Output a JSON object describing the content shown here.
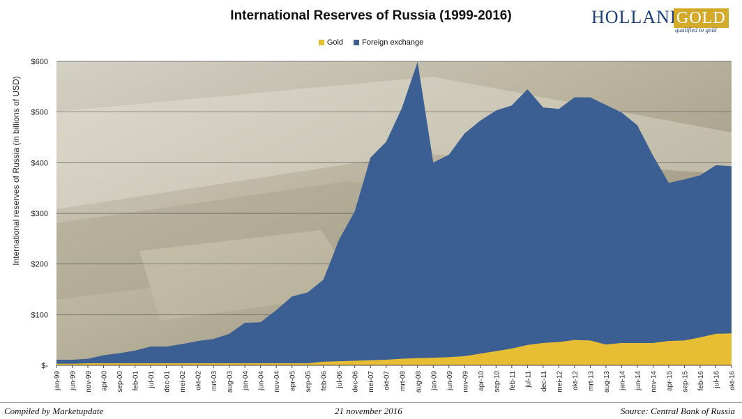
{
  "colors": {
    "gold": "#e6bd33",
    "fx": "#3b5f93",
    "brand_blue": "#1f3f7a",
    "brand_gold": "#d4aa2a"
  },
  "logo": {
    "part1": "HOLLAND",
    "part2": "GOLD",
    "tagline": "qualified to gold"
  },
  "footer": {
    "left": "Compiled by Marketupdate",
    "center": "21 november 2016",
    "right": "Source: Central Bank of Russia"
  },
  "chart_data": {
    "type": "area",
    "stacked": true,
    "title": "International Reserves of Russia (1999-2016)",
    "ylabel": "International reserves of Russia (in billions of USD)",
    "xlabel": "",
    "ylim": [
      0,
      600
    ],
    "yticks": [
      "$-",
      "$100",
      "$200",
      "$300",
      "$400",
      "$500",
      "$600"
    ],
    "grid": "horizontal",
    "legend_position": "top",
    "x": [
      "jan-99",
      "jun-99",
      "nov-99",
      "apr-00",
      "sep-00",
      "feb-01",
      "jul-01",
      "dec-01",
      "mei-02",
      "okt-02",
      "mrt-03",
      "aug-03",
      "jan-04",
      "jun-04",
      "nov-04",
      "apr-05",
      "sep-05",
      "feb-06",
      "jul-06",
      "dec-06",
      "mei-07",
      "okt-07",
      "mrt-08",
      "aug-08",
      "jan-09",
      "jun-09",
      "nov-09",
      "apr-10",
      "sep-10",
      "feb-11",
      "jul-11",
      "dec-11",
      "mei-12",
      "okt-12",
      "mrt-13",
      "aug-13",
      "jan-14",
      "jun-14",
      "nov-14",
      "apr-15",
      "sep-15",
      "feb-16",
      "jul-16",
      "okt-16"
    ],
    "series": [
      {
        "name": "Gold",
        "values": [
          3,
          3,
          4,
          4,
          4,
          4,
          4,
          4,
          4,
          4,
          4,
          4,
          4,
          4,
          4,
          4,
          4,
          7,
          8,
          9,
          10,
          11,
          13,
          14,
          15,
          16,
          18,
          23,
          28,
          33,
          40,
          44,
          46,
          50,
          49,
          41,
          44,
          44,
          44,
          48,
          49,
          55,
          62,
          63
        ]
      },
      {
        "name": "Foreign exchange",
        "values": [
          8,
          8,
          9,
          16,
          20,
          25,
          33,
          33,
          38,
          44,
          48,
          58,
          80,
          81,
          105,
          132,
          140,
          162,
          240,
          295,
          400,
          430,
          495,
          585,
          385,
          400,
          440,
          460,
          475,
          480,
          505,
          465,
          460,
          479,
          480,
          473,
          455,
          430,
          370,
          312,
          318,
          320,
          333,
          330
        ]
      }
    ]
  }
}
